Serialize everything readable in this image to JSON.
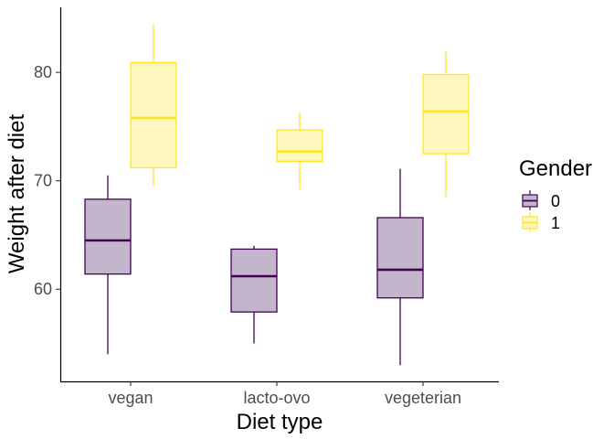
{
  "chart_data": {
    "type": "boxplot",
    "title": "",
    "xlabel": "Diet type",
    "ylabel": "Weight after diet",
    "categories": [
      "vegan",
      "lacto-ovo",
      "vegeterian"
    ],
    "ylim": [
      51.5,
      86
    ],
    "y_ticks": [
      60,
      70,
      80
    ],
    "grid": false,
    "legend": {
      "title": "Gender",
      "position": "right"
    },
    "series": [
      {
        "name": "0",
        "color": "#440154",
        "fill": "#c3b5cb",
        "boxes": [
          {
            "min": 54.0,
            "q1": 61.4,
            "median": 64.5,
            "q3": 68.3,
            "max": 70.5
          },
          {
            "min": 55.0,
            "q1": 57.9,
            "median": 61.2,
            "q3": 63.7,
            "max": 64.0
          },
          {
            "min": 53.0,
            "q1": 59.2,
            "median": 61.8,
            "q3": 66.6,
            "max": 71.1
          }
        ]
      },
      {
        "name": "1",
        "color": "#fde725",
        "fill": "#fff7be",
        "boxes": [
          {
            "min": 69.5,
            "q1": 71.2,
            "median": 75.8,
            "q3": 80.9,
            "max": 84.5
          },
          {
            "min": 69.2,
            "q1": 71.8,
            "median": 72.7,
            "q3": 74.7,
            "max": 76.3
          },
          {
            "min": 68.5,
            "q1": 72.5,
            "median": 76.4,
            "q3": 79.8,
            "max": 82.0
          }
        ]
      }
    ]
  }
}
